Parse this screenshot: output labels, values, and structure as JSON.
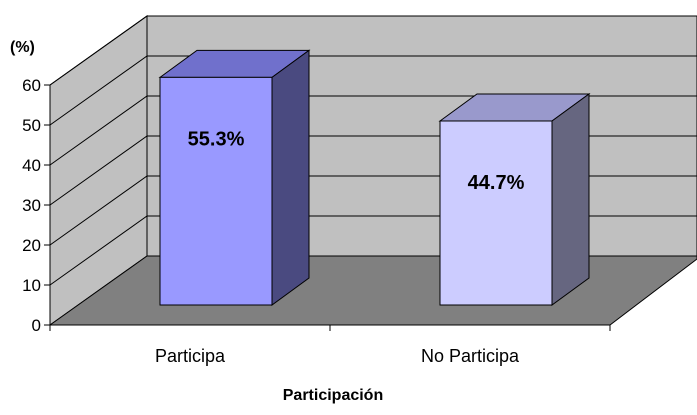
{
  "chart_data": {
    "type": "bar",
    "title": "",
    "xlabel": "Participación",
    "ylabel": "(%)",
    "categories": [
      "Participa",
      "No Participa"
    ],
    "values": [
      55.3,
      44.7
    ],
    "data_labels": [
      "55.3%",
      "44.7%"
    ],
    "yticks": [
      "0",
      "10",
      "20",
      "30",
      "40",
      "50",
      "60"
    ],
    "ylim": [
      0,
      60
    ],
    "grid": true,
    "style": "3d",
    "colors": {
      "wall": "#c0c0c0",
      "floor": "#808080",
      "bar_front": [
        "#9999ff",
        "#ccccff"
      ],
      "bar_side": [
        "#4a4a80",
        "#666680"
      ],
      "bar_top": [
        "#7070cc",
        "#9999cc"
      ]
    }
  }
}
